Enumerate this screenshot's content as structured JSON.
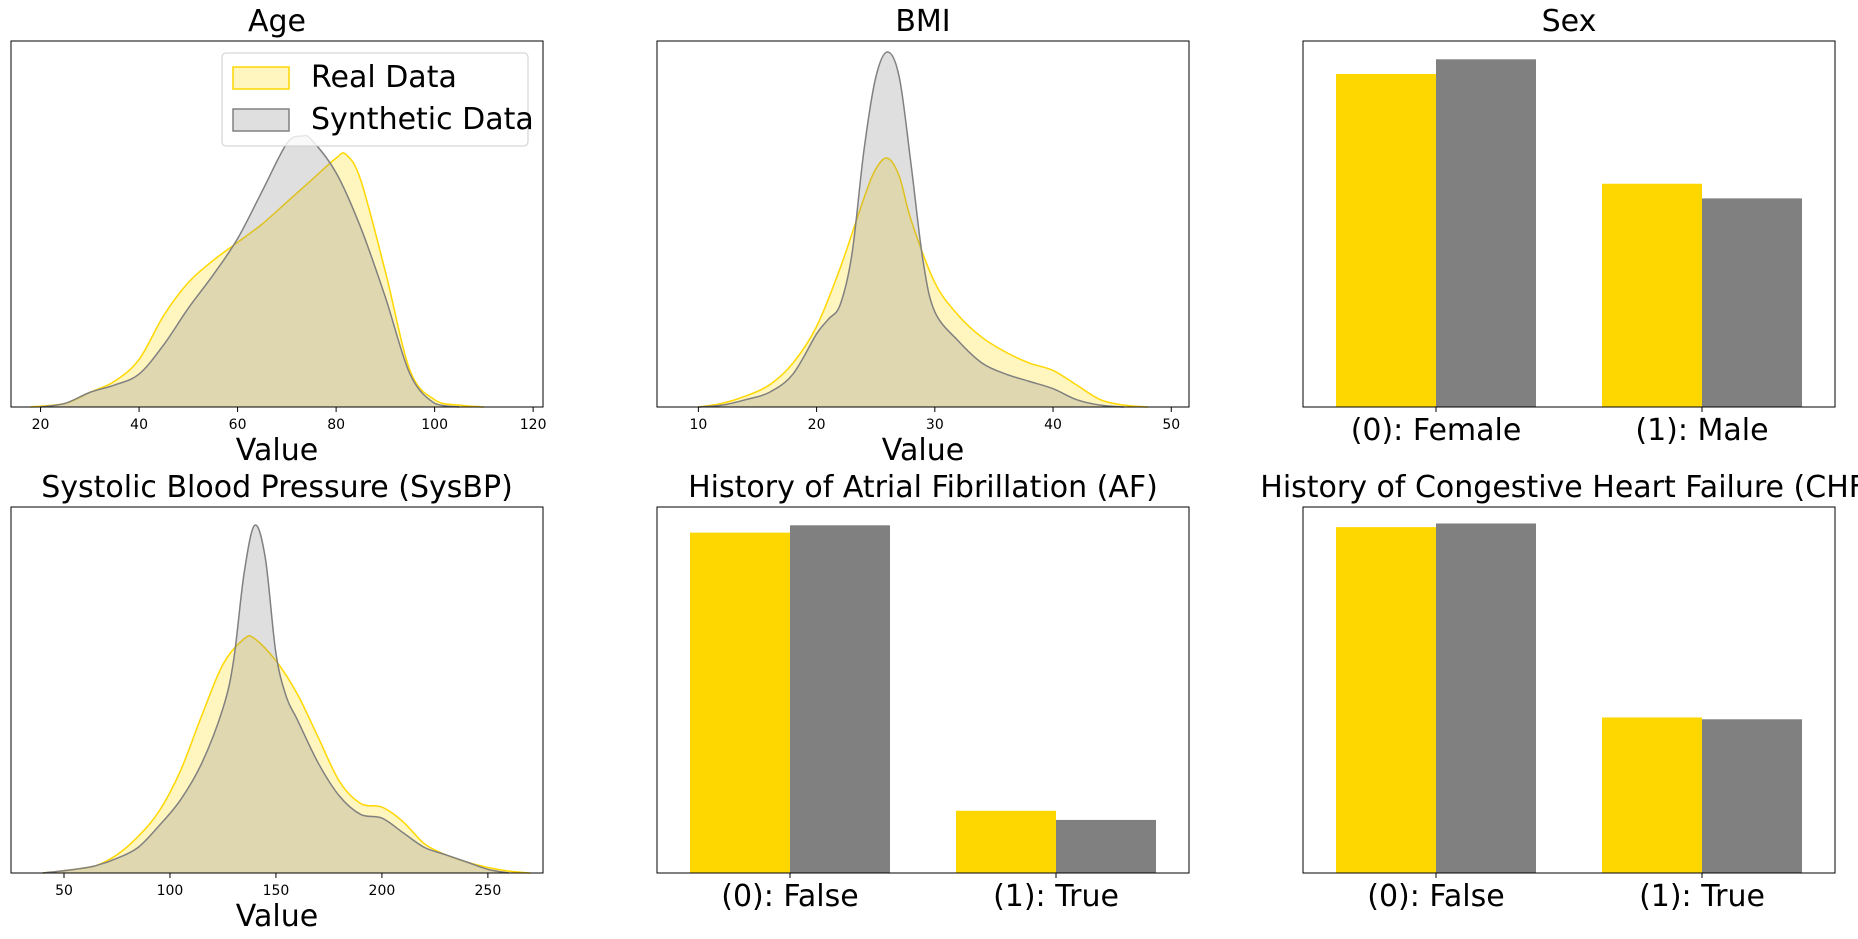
{
  "chart_data": [
    {
      "id": "age",
      "type": "area",
      "title": "Age",
      "xlabel": "Value",
      "xlim": [
        14,
        122
      ],
      "xticks": [
        20,
        40,
        60,
        80,
        100,
        120
      ],
      "ylim": [
        0,
        1
      ],
      "legend": "top-right",
      "series": [
        {
          "name": "Real Data",
          "color": "#FFD700",
          "x": [
            18,
            25,
            30,
            35,
            40,
            45,
            50,
            55,
            60,
            65,
            70,
            75,
            80,
            82,
            85,
            90,
            95,
            100,
            105,
            110
          ],
          "y": [
            0,
            0.01,
            0.04,
            0.07,
            0.13,
            0.25,
            0.34,
            0.4,
            0.45,
            0.5,
            0.56,
            0.62,
            0.68,
            0.69,
            0.62,
            0.37,
            0.1,
            0.02,
            0.005,
            0
          ]
        },
        {
          "name": "Synthetic Data",
          "color": "#808080",
          "x": [
            20,
            25,
            30,
            35,
            40,
            45,
            50,
            55,
            60,
            65,
            70,
            73,
            75,
            80,
            85,
            90,
            95,
            100,
            105
          ],
          "y": [
            0,
            0.01,
            0.04,
            0.06,
            0.09,
            0.17,
            0.27,
            0.36,
            0.46,
            0.59,
            0.72,
            0.74,
            0.73,
            0.64,
            0.49,
            0.3,
            0.09,
            0.01,
            0
          ]
        }
      ]
    },
    {
      "id": "bmi",
      "type": "area",
      "title": "BMI",
      "xlabel": "Value",
      "xlim": [
        6.5,
        51.5
      ],
      "xticks": [
        10,
        20,
        30,
        40,
        50
      ],
      "ylim": [
        0,
        1
      ],
      "series": [
        {
          "name": "Real Data",
          "color": "#FFD700",
          "x": [
            10,
            12,
            14,
            16,
            18,
            20,
            22,
            24,
            25,
            26,
            27,
            28,
            30,
            32,
            34,
            36,
            38,
            40,
            42,
            44,
            46,
            48
          ],
          "y": [
            0,
            0.01,
            0.03,
            0.06,
            0.12,
            0.22,
            0.38,
            0.57,
            0.65,
            0.68,
            0.63,
            0.51,
            0.34,
            0.25,
            0.19,
            0.15,
            0.12,
            0.1,
            0.06,
            0.02,
            0.005,
            0
          ]
        },
        {
          "name": "Synthetic Data",
          "color": "#808080",
          "x": [
            10,
            12,
            14,
            16,
            18,
            20,
            21,
            22,
            23,
            24,
            25,
            26,
            27,
            28,
            29,
            30,
            32,
            34,
            36,
            38,
            40,
            42,
            44,
            46
          ],
          "y": [
            0,
            0.005,
            0.02,
            0.04,
            0.09,
            0.2,
            0.24,
            0.28,
            0.42,
            0.7,
            0.9,
            0.97,
            0.9,
            0.66,
            0.4,
            0.26,
            0.18,
            0.12,
            0.09,
            0.07,
            0.05,
            0.02,
            0.005,
            0
          ]
        }
      ]
    },
    {
      "id": "sex",
      "type": "bar",
      "title": "Sex",
      "categories": [
        "(0): Female",
        "(1): Male"
      ],
      "ylim": [
        0,
        1
      ],
      "series": [
        {
          "name": "Real Data",
          "color": "#FFD700",
          "values": [
            0.91,
            0.61
          ]
        },
        {
          "name": "Synthetic Data",
          "color": "#808080",
          "values": [
            0.95,
            0.57
          ]
        }
      ]
    },
    {
      "id": "sysbp",
      "type": "area",
      "title": "Systolic Blood Pressure (SysBP)",
      "xlabel": "Value",
      "xlim": [
        25,
        276
      ],
      "xticks": [
        50,
        100,
        150,
        200,
        250
      ],
      "ylim": [
        0,
        1
      ],
      "series": [
        {
          "name": "Real Data",
          "color": "#FFD700",
          "x": [
            40,
            55,
            65,
            75,
            85,
            95,
            105,
            115,
            125,
            135,
            140,
            150,
            160,
            170,
            180,
            190,
            200,
            210,
            220,
            230,
            240,
            250,
            260,
            270
          ],
          "y": [
            0,
            0.01,
            0.02,
            0.05,
            0.1,
            0.17,
            0.28,
            0.43,
            0.57,
            0.64,
            0.64,
            0.58,
            0.49,
            0.37,
            0.25,
            0.19,
            0.18,
            0.14,
            0.08,
            0.05,
            0.03,
            0.015,
            0.005,
            0
          ]
        },
        {
          "name": "Synthetic Data",
          "color": "#808080",
          "x": [
            40,
            55,
            65,
            75,
            85,
            95,
            105,
            115,
            125,
            130,
            135,
            140,
            145,
            150,
            155,
            160,
            170,
            180,
            190,
            200,
            210,
            220,
            230,
            240,
            250,
            260
          ],
          "y": [
            0,
            0.01,
            0.02,
            0.04,
            0.07,
            0.13,
            0.2,
            0.3,
            0.45,
            0.58,
            0.82,
            0.95,
            0.86,
            0.6,
            0.48,
            0.42,
            0.3,
            0.21,
            0.16,
            0.15,
            0.11,
            0.07,
            0.05,
            0.03,
            0.01,
            0
          ]
        }
      ]
    },
    {
      "id": "af",
      "type": "bar",
      "title": "History of Atrial Fibrillation (AF)",
      "categories": [
        "(0): False",
        "(1): True"
      ],
      "ylim": [
        0,
        1
      ],
      "series": [
        {
          "name": "Real Data",
          "color": "#FFD700",
          "values": [
            0.93,
            0.17
          ]
        },
        {
          "name": "Synthetic Data",
          "color": "#808080",
          "values": [
            0.95,
            0.145
          ]
        }
      ]
    },
    {
      "id": "chf",
      "type": "bar",
      "title": "History of Congestive Heart Failure (CHF)",
      "categories": [
        "(0): False",
        "(1): True"
      ],
      "ylim": [
        0,
        1
      ],
      "series": [
        {
          "name": "Real Data",
          "color": "#FFD700",
          "values": [
            0.945,
            0.425
          ]
        },
        {
          "name": "Synthetic Data",
          "color": "#808080",
          "values": [
            0.955,
            0.42
          ]
        }
      ]
    }
  ]
}
